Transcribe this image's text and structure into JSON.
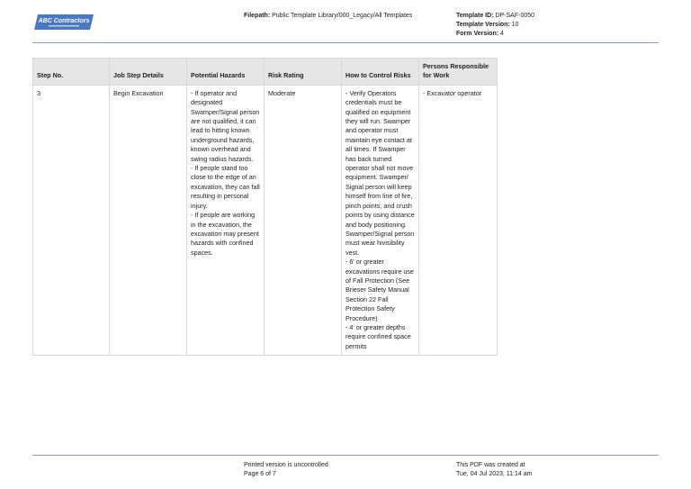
{
  "header": {
    "logo_text": "ABC Contractors",
    "filepath_label": "Filepath:",
    "filepath_value": "Public Template Library/000_Legacy/All Templates",
    "template_id_label": "Template ID:",
    "template_id_value": "DP-SAF-0050",
    "template_version_label": "Template Version:",
    "template_version_value": "10",
    "form_version_label": "Form Version:",
    "form_version_value": "4",
    "accent_color": "#7a9cc6"
  },
  "table": {
    "columns": [
      "Step No.",
      "Job Step Details",
      "Potential Hazards",
      "Risk Rating",
      "How to Control Risks",
      "Persons Responsible for Work"
    ],
    "rows": [
      {
        "step": "3",
        "details": "Begin Excavation",
        "hazards": "- If operator and designated Swamper/Signal person are not qualified, it can lead to hitting known underground hazards, known overhead and swing radius hazards.\n- If people stand too close to the edge of an excavation, they can fall resulting in personal injury.\n- If people are working in the excavation, the excavation may present hazards with confined spaces.",
        "risk": "Moderate",
        "controls": "- Verify Operators credentials must be qualified on equipment they will run. Swamper and operator must maintain eye contact at all times. If Swamper has back turned operator shall not move equipment. Swamper/ Signal person will keep himself from line of fire, pinch points, and crush points by using distance and body positioning. Swamper/Signal person must wear hivisibility vest.\n- 6' or greater excavations require use of Fall Protection (See Brieser Safety Manual Section 22 Fall Protection Safety Procedure)\n- 4' or greater depths require confined space permits",
        "persons": "- Excavator operator"
      }
    ]
  },
  "footer": {
    "uncontrolled": "Printed version is uncontrolled",
    "page": "Page 6 of 7",
    "created_label": "This PDF was created at",
    "created_at": "Tue, 04 Jul 2023, 11:14 am"
  }
}
